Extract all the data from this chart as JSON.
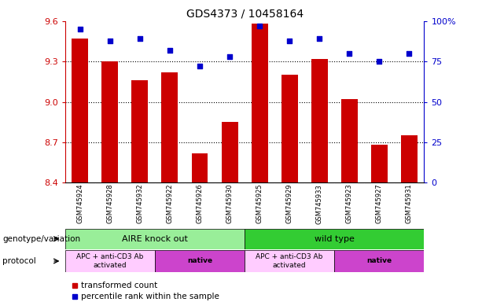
{
  "title": "GDS4373 / 10458164",
  "samples": [
    "GSM745924",
    "GSM745928",
    "GSM745932",
    "GSM745922",
    "GSM745926",
    "GSM745930",
    "GSM745925",
    "GSM745929",
    "GSM745933",
    "GSM745923",
    "GSM745927",
    "GSM745931"
  ],
  "bar_values": [
    9.47,
    9.3,
    9.16,
    9.22,
    8.62,
    8.85,
    9.58,
    9.2,
    9.32,
    9.02,
    8.68,
    8.75
  ],
  "dot_values": [
    95,
    88,
    89,
    82,
    72,
    78,
    97,
    88,
    89,
    80,
    75,
    80
  ],
  "ylim": [
    8.4,
    9.6
  ],
  "y2lim": [
    0,
    100
  ],
  "yticks": [
    8.4,
    8.7,
    9.0,
    9.3,
    9.6
  ],
  "y2ticks": [
    0,
    25,
    50,
    75,
    100
  ],
  "bar_color": "#cc0000",
  "dot_color": "#0000cc",
  "bg_color": "#ffffff",
  "tick_area_color": "#cccccc",
  "genotype_groups": [
    {
      "label": "AIRE knock out",
      "start": 0,
      "end": 6,
      "color": "#99ee99"
    },
    {
      "label": "wild type",
      "start": 6,
      "end": 12,
      "color": "#33cc33"
    }
  ],
  "protocol_groups": [
    {
      "label": "APC + anti-CD3 Ab\nactivated",
      "start": 0,
      "end": 3,
      "color": "#ffccff"
    },
    {
      "label": "native",
      "start": 3,
      "end": 6,
      "color": "#cc44cc"
    },
    {
      "label": "APC + anti-CD3 Ab\nactivated",
      "start": 6,
      "end": 9,
      "color": "#ffccff"
    },
    {
      "label": "native",
      "start": 9,
      "end": 12,
      "color": "#cc44cc"
    }
  ],
  "genotype_label": "genotype/variation",
  "protocol_label": "protocol",
  "legend_bar": "transformed count",
  "legend_dot": "percentile rank within the sample",
  "title_fontsize": 10,
  "axis_fontsize": 8,
  "label_fontsize": 8
}
